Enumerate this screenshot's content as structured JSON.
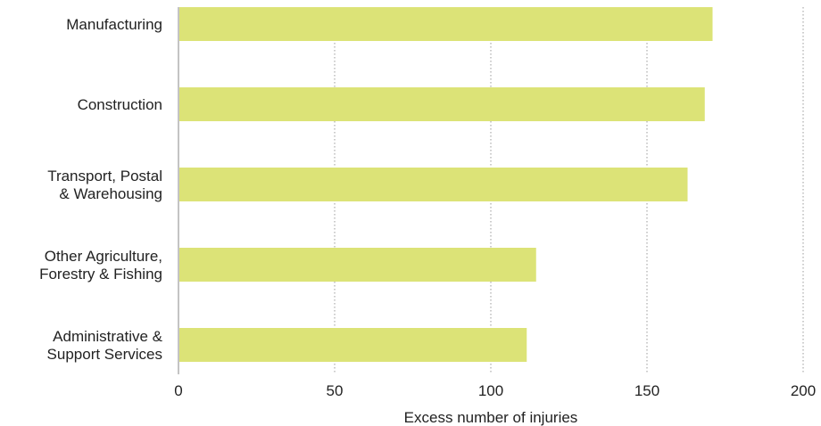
{
  "chart_data": {
    "type": "bar",
    "orientation": "horizontal",
    "categories": [
      [
        "Manufacturing"
      ],
      [
        "Construction"
      ],
      [
        "Transport, Postal",
        "& Warehousing"
      ],
      [
        "Other Agriculture,",
        "Forestry & Fishing"
      ],
      [
        "Administrative &",
        "Support Services"
      ]
    ],
    "values": [
      171,
      168.5,
      163,
      114.5,
      111.5
    ],
    "xlabel": "Excess number of injuries",
    "ylabel": "",
    "title": "",
    "xlim": [
      0,
      200
    ],
    "xticks": [
      "0",
      "50",
      "100",
      "150",
      "200"
    ],
    "grid": "vertical dotted",
    "legend": "none",
    "colors": {
      "bar": "#dce377",
      "grid": "#9a9a9a",
      "axis": "#888888",
      "text": "#222222"
    }
  }
}
